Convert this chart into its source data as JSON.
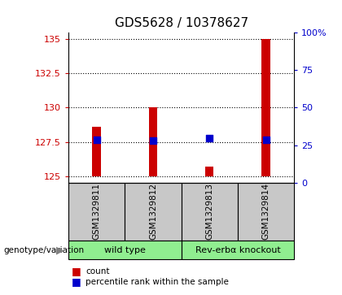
{
  "title": "GDS5628 / 10378627",
  "samples": [
    "GSM1329811",
    "GSM1329812",
    "GSM1329813",
    "GSM1329814"
  ],
  "bar_bottoms": [
    125,
    125,
    125,
    125
  ],
  "bar_tops": [
    128.6,
    130.0,
    125.7,
    135.0
  ],
  "percentile_values": [
    28.5,
    28.0,
    30.0,
    28.5
  ],
  "ylim_left": [
    124.5,
    135.5
  ],
  "ylim_right": [
    0,
    100
  ],
  "yticks_left": [
    125,
    127.5,
    130,
    132.5,
    135
  ],
  "yticks_right": [
    0,
    25,
    50,
    75,
    100
  ],
  "ytick_labels_left": [
    "125",
    "127.5",
    "130",
    "132.5",
    "135"
  ],
  "ytick_labels_right": [
    "0",
    "25",
    "50",
    "75",
    "100%"
  ],
  "bar_color": "#cc0000",
  "dot_color": "#0000cc",
  "group_labels": [
    "wild type",
    "Rev-erbα knockout"
  ],
  "group_ranges": [
    [
      0,
      1
    ],
    [
      2,
      3
    ]
  ],
  "group_color": "#90ee90",
  "sample_bg_color": "#c8c8c8",
  "legend_count_label": "count",
  "legend_pct_label": "percentile rank within the sample",
  "genotype_label": "genotype/variation",
  "bar_width": 0.15,
  "grid_color": "#000000"
}
